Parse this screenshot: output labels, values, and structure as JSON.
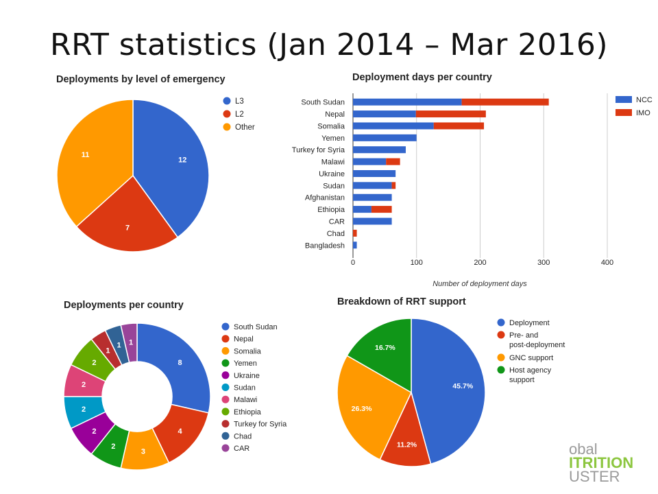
{
  "slide": {
    "title": "RRT statistics (Jan 2014 – Mar 2016)"
  },
  "logo": {
    "line1": "obal",
    "line2": "ITRITION",
    "line3": "USTER"
  },
  "chart_data": [
    {
      "type": "pie",
      "title": "Deployments by level of emergency",
      "categories": [
        "L3",
        "L2",
        "Other"
      ],
      "values": [
        12,
        7,
        11
      ],
      "colors": [
        "#3366cc",
        "#dc3912",
        "#ff9900"
      ],
      "legend": "right"
    },
    {
      "type": "bar",
      "orientation": "horizontal",
      "stacked": true,
      "title": "Deployment days per country",
      "categories": [
        "South Sudan",
        "Nepal",
        "Somalia",
        "Yemen",
        "Turkey for Syria",
        "Malawi",
        "Ukraine",
        "Sudan",
        "Afghanistan",
        "Ethiopia",
        "CAR",
        "Chad",
        "Bangladesh"
      ],
      "series": [
        {
          "name": "NCC",
          "color": "#3366cc",
          "values": [
            171,
            99,
            127,
            100,
            83,
            52,
            67,
            61,
            61,
            29,
            61,
            0,
            6
          ]
        },
        {
          "name": "IMO",
          "color": "#dc3912",
          "values": [
            137,
            110,
            79,
            0,
            0,
            22,
            0,
            6,
            0,
            32,
            0,
            6,
            0
          ]
        }
      ],
      "xlabel": "Number of deployment days",
      "xticks": [
        "0",
        "100",
        "200",
        "300",
        "400"
      ],
      "xlim": [
        0,
        400
      ],
      "grid": true,
      "legend": "top-right"
    },
    {
      "type": "pie",
      "donut": true,
      "title": "Deployments per country",
      "categories": [
        "South Sudan",
        "Nepal",
        "Somalia",
        "Yemen",
        "Ukraine",
        "Sudan",
        "Malawi",
        "Ethiopia",
        "Turkey for Syria",
        "Chad",
        "CAR"
      ],
      "values": [
        8,
        4,
        3,
        2,
        2,
        2,
        2,
        2,
        1,
        1,
        1
      ],
      "colors": [
        "#3366cc",
        "#dc3912",
        "#ff9900",
        "#109618",
        "#990099",
        "#0099c6",
        "#dd4477",
        "#66aa00",
        "#b82e2e",
        "#316395",
        "#994499"
      ],
      "legend": "right"
    },
    {
      "type": "pie",
      "title": "Breakdown of RRT support",
      "categories": [
        "Deployment",
        "Pre- and post-deployment",
        "GNC support",
        "Host agency support"
      ],
      "values": [
        45.7,
        11.2,
        26.3,
        16.7
      ],
      "labels": [
        "45.7%",
        "11.2%",
        "26.3%",
        "16.7%"
      ],
      "colors": [
        "#3366cc",
        "#dc3912",
        "#ff9900",
        "#109618"
      ],
      "legend": "right"
    }
  ]
}
